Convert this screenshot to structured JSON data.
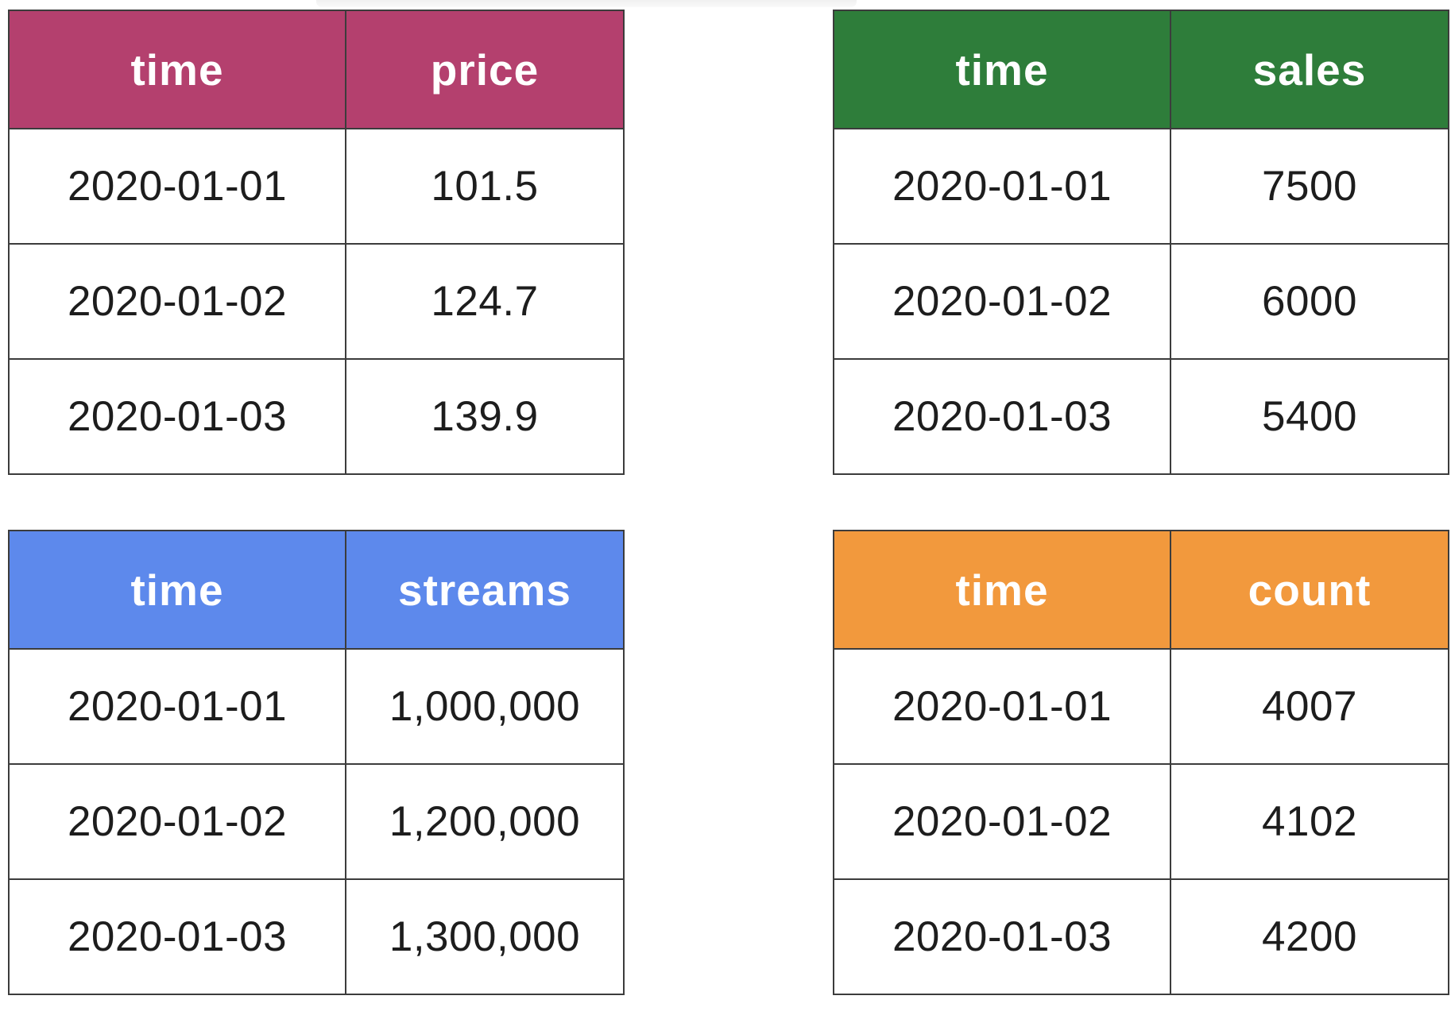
{
  "page": {
    "background": "#ffffff",
    "border_color": "#3c3c3c",
    "header_text_color": "#ffffff",
    "body_text_color": "#1d1d1d"
  },
  "chart_data": [
    {
      "type": "table",
      "id": "price",
      "grid_position": "top-left",
      "header_color": "#b4406e",
      "columns": [
        "time",
        "price"
      ],
      "rows": [
        [
          "2020-01-01",
          "101.5"
        ],
        [
          "2020-01-02",
          "124.7"
        ],
        [
          "2020-01-03",
          "139.9"
        ]
      ]
    },
    {
      "type": "table",
      "id": "sales",
      "grid_position": "top-right",
      "header_color": "#2e7d3a",
      "columns": [
        "time",
        "sales"
      ],
      "rows": [
        [
          "2020-01-01",
          "7500"
        ],
        [
          "2020-01-02",
          "6000"
        ],
        [
          "2020-01-03",
          "5400"
        ]
      ]
    },
    {
      "type": "table",
      "id": "streams",
      "grid_position": "bottom-left",
      "header_color": "#5d89ec",
      "columns": [
        "time",
        "streams"
      ],
      "rows": [
        [
          "2020-01-01",
          "1,000,000"
        ],
        [
          "2020-01-02",
          "1,200,000"
        ],
        [
          "2020-01-03",
          "1,300,000"
        ]
      ]
    },
    {
      "type": "table",
      "id": "count",
      "grid_position": "bottom-right",
      "header_color": "#f2993d",
      "columns": [
        "time",
        "count"
      ],
      "rows": [
        [
          "2020-01-01",
          "4007"
        ],
        [
          "2020-01-02",
          "4102"
        ],
        [
          "2020-01-03",
          "4200"
        ]
      ]
    }
  ]
}
